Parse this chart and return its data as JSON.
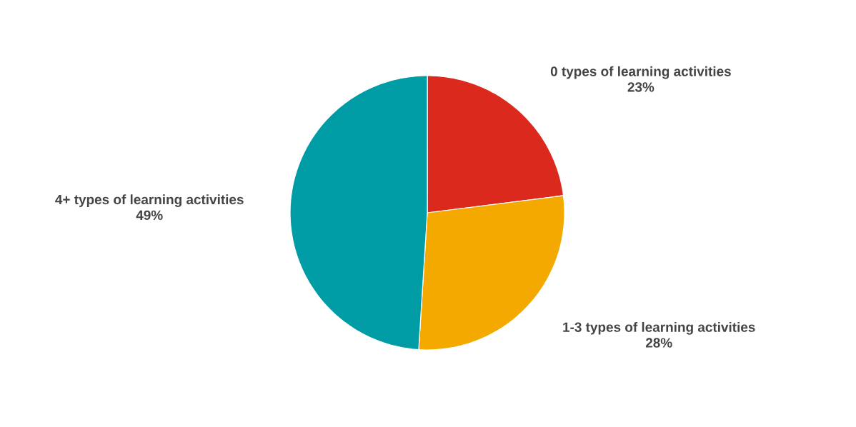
{
  "chart_data": {
    "type": "pie",
    "categories": [
      "0 types of learning activities",
      "1-3 types of learning activities",
      "4+ types of learning activities"
    ],
    "values": [
      23,
      28,
      49
    ],
    "value_labels": [
      "23%",
      "28%",
      "49%"
    ],
    "colors": [
      "#dc291e",
      "#f4a900",
      "#009ca6"
    ]
  }
}
